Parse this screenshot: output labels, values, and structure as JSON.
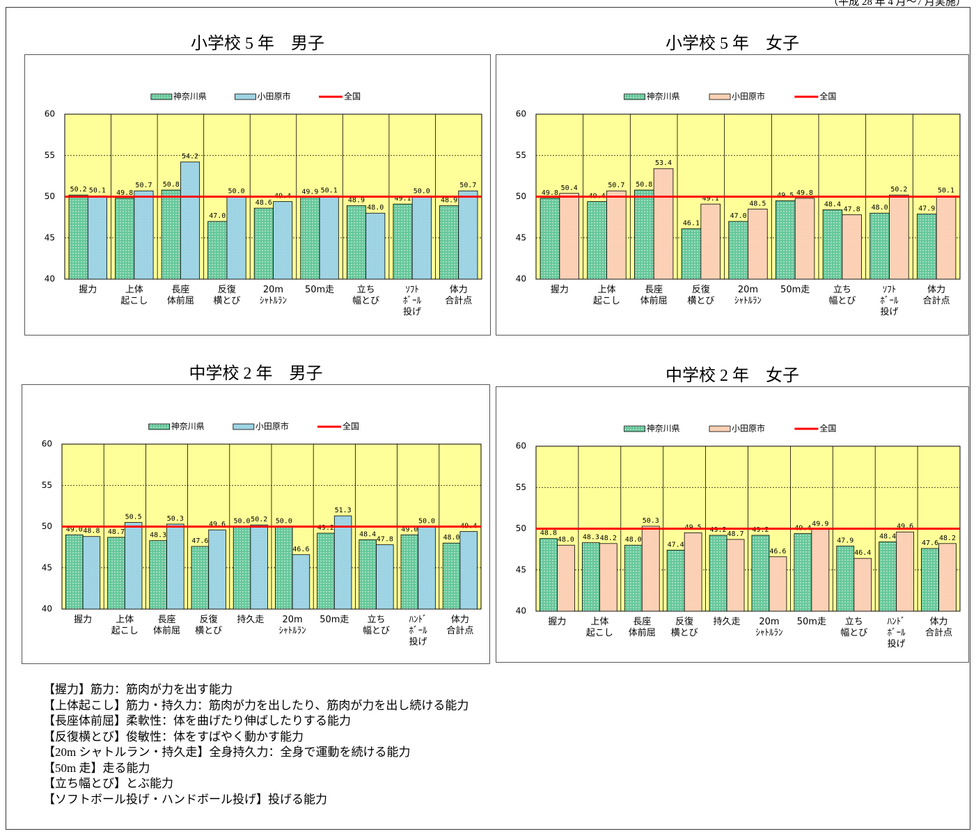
{
  "note": "（平成 28 年 4 月～7 月実施）",
  "chart_data": [
    {
      "type": "bar",
      "title": "小学校 5 年　男子",
      "categories": [
        "握力",
        "上体\n起こし",
        "長座\n体前屈",
        "反復\n横とび",
        "20m\nｼｬﾄﾙﾗﾝ",
        "50m走",
        "立ち\n幅とび",
        "ｿﾌﾄ\nﾎﾞｰﾙ\n投げ",
        "体力\n合計点"
      ],
      "series": [
        {
          "name": "神奈川県",
          "color": "#66c89a",
          "values": [
            50.2,
            49.8,
            50.8,
            47.0,
            48.6,
            49.9,
            48.9,
            49.1,
            48.9
          ],
          "value_labels": [
            "50.2",
            "49.8",
            "50.8",
            "47.0",
            "48.6",
            "49.9",
            "48.9",
            "49.1",
            "48.9"
          ]
        },
        {
          "name": "小田原市",
          "color": "#9dd3e3",
          "values": [
            50.1,
            50.7,
            54.2,
            50.0,
            49.4,
            50.1,
            48.0,
            50.0,
            50.7
          ],
          "value_labels": [
            "50.1",
            "50.7",
            "54.2",
            "50.0",
            "49.4",
            "50.1",
            "48.0",
            "50.0",
            "50.7"
          ]
        }
      ],
      "reference_line": {
        "name": "全国",
        "value": 50,
        "color": "#ff0000"
      },
      "ylim": [
        40,
        60
      ],
      "yticks": [
        40,
        45,
        50,
        55,
        60
      ],
      "grid": true,
      "plot_background": "#ffff99"
    },
    {
      "type": "bar",
      "title": "小学校 5 年　女子",
      "categories": [
        "握力",
        "上体\n起こし",
        "長座\n体前屈",
        "反復\n横とび",
        "20m\nｼｬﾄﾙﾗﾝ",
        "50m走",
        "立ち\n幅とび",
        "ｿﾌﾄ\nﾎﾞｰﾙ\n投げ",
        "体力\n合計点"
      ],
      "series": [
        {
          "name": "神奈川県",
          "color": "#66c89a",
          "values": [
            49.8,
            49.4,
            50.8,
            46.1,
            47.0,
            49.5,
            48.4,
            48.0,
            47.9
          ],
          "value_labels": [
            "49.8",
            "49.4",
            "50.8",
            "46.1",
            "47.0",
            "49.5",
            "48.4",
            "48.0",
            "47.9"
          ]
        },
        {
          "name": "小田原市",
          "color": "#fbd0b4",
          "values": [
            50.4,
            50.7,
            53.4,
            49.1,
            48.5,
            49.8,
            47.8,
            50.2,
            50.1
          ],
          "value_labels": [
            "50.4",
            "50.7",
            "53.4",
            "49.1",
            "48.5",
            "49.8",
            "47.8",
            "50.2",
            "50.1"
          ]
        }
      ],
      "reference_line": {
        "name": "全国",
        "value": 50,
        "color": "#ff0000"
      },
      "ylim": [
        40,
        60
      ],
      "yticks": [
        40,
        45,
        50,
        55,
        60
      ],
      "grid": true,
      "plot_background": "#ffff99"
    },
    {
      "type": "bar",
      "title": "中学校 2 年　男子",
      "categories": [
        "握力",
        "上体\n起こし",
        "長座\n体前屈",
        "反復\n横とび",
        "持久走",
        "20m\nｼｬﾄﾙﾗﾝ",
        "50m走",
        "立ち\n幅とび",
        "ﾊﾝﾄﾞ\nﾎﾞｰﾙ\n投げ",
        "体力\n合計点"
      ],
      "series": [
        {
          "name": "神奈川県",
          "color": "#66c89a",
          "values": [
            49.0,
            48.7,
            48.3,
            47.6,
            50.0,
            50.0,
            49.2,
            48.4,
            49.0,
            48.0
          ],
          "value_labels": [
            "49.0",
            "48.7",
            "48.3",
            "47.6",
            "50.0",
            "50.0",
            "49.2",
            "48.4",
            "49.0",
            "48.0"
          ]
        },
        {
          "name": "小田原市",
          "color": "#9dd3e3",
          "values": [
            48.8,
            50.5,
            50.3,
            49.6,
            50.2,
            46.6,
            51.3,
            47.8,
            50.0,
            49.4
          ],
          "value_labels": [
            "48.8",
            "50.5",
            "50.3",
            "49.6",
            "50.2",
            "46.6",
            "51.3",
            "47.8",
            "50.0",
            "49.4"
          ]
        }
      ],
      "reference_line": {
        "name": "全国",
        "value": 50,
        "color": "#ff0000"
      },
      "ylim": [
        40,
        60
      ],
      "yticks": [
        40,
        45,
        50,
        55,
        60
      ],
      "grid": true,
      "plot_background": "#ffff99"
    },
    {
      "type": "bar",
      "title": "中学校 2 年　女子",
      "categories": [
        "握力",
        "上体\n起こし",
        "長座\n体前屈",
        "反復\n横とび",
        "持久走",
        "20m\nｼｬﾄﾙﾗﾝ",
        "50m走",
        "立ち\n幅とび",
        "ﾊﾝﾄﾞ\nﾎﾞｰﾙ\n投げ",
        "体力\n合計点"
      ],
      "series": [
        {
          "name": "神奈川県",
          "color": "#66c89a",
          "values": [
            48.8,
            48.3,
            48.0,
            47.4,
            49.2,
            49.2,
            49.4,
            47.9,
            48.4,
            47.6
          ],
          "value_labels": [
            "48.8",
            "48.3",
            "48.0",
            "47.4",
            "49.2",
            "49.2",
            "49.4",
            "47.9",
            "48.4",
            "47.6"
          ]
        },
        {
          "name": "小田原市",
          "color": "#fbd0b4",
          "values": [
            48.0,
            48.2,
            50.3,
            49.5,
            48.7,
            46.6,
            49.9,
            46.4,
            49.6,
            48.2
          ],
          "value_labels": [
            "48.0",
            "48.2",
            "50.3",
            "49.5",
            "48.7",
            "46.6",
            "49.9",
            "46.4",
            "49.6",
            "48.2"
          ]
        }
      ],
      "reference_line": {
        "name": "全国",
        "value": 50,
        "color": "#ff0000"
      },
      "ylim": [
        40,
        60
      ],
      "yticks": [
        40,
        45,
        50,
        55,
        60
      ],
      "grid": true,
      "plot_background": "#ffff99"
    }
  ],
  "descriptions": [
    "【握力】筋力：筋肉が力を出す能力",
    "【上体起こし】筋力・持久力：筋肉が力を出したり、筋肉が力を出し続ける能力",
    "【長座体前屈】柔軟性：体を曲げたり伸ばしたりする能力",
    "【反復横とび】俊敏性：体をすばやく動かす能力",
    "【20m シャトルラン・持久走】全身持久力：全身で運動を続ける能力",
    "【50m 走】走る能力",
    "【立ち幅とび】とぶ能力",
    "【ソフトボール投げ・ハンドボール投げ】投げる能力"
  ]
}
